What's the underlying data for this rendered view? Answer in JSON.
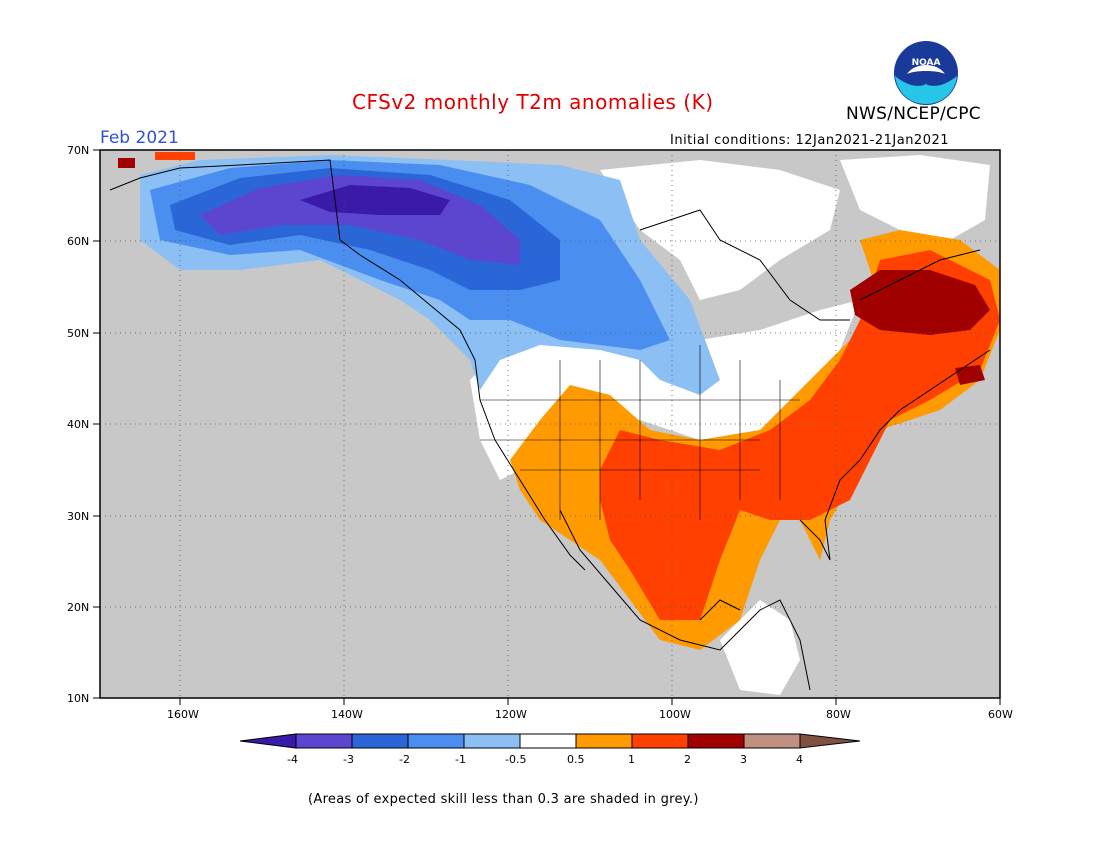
{
  "header": {
    "title": "CFSv2 monthly T2m anomalies (K)",
    "month": "Feb 2021",
    "agency": "NWS/NCEP/CPC",
    "initial_conditions": "Initial conditions: 12Jan2021-21Jan2021",
    "logo_text": "NOAA"
  },
  "map": {
    "projection": "lat-lon",
    "lon_range": [
      -172,
      -60
    ],
    "lat_range": [
      10,
      70
    ],
    "lat_labels": [
      "70N",
      "60N",
      "50N",
      "40N",
      "30N",
      "20N",
      "10N"
    ],
    "lon_labels": [
      "160W",
      "140W",
      "120W",
      "100W",
      "80W",
      "60W"
    ],
    "grid": "dotted",
    "skill_mask_color": "#c8c8c8"
  },
  "colorbar": {
    "tick_labels": [
      "-4",
      "-3",
      "-2",
      "-1",
      "-0.5",
      "0.5",
      "1",
      "2",
      "3",
      "4"
    ],
    "colors": [
      "#3a1aa8",
      "#5c46d0",
      "#2b66d8",
      "#4a8ef0",
      "#8cc0f4",
      "#ffffff",
      "#ff9a00",
      "#ff4000",
      "#a00000",
      "#c09080",
      "#805040"
    ]
  },
  "footnote": "(Areas of expected skill less than 0.3 are shaded in grey.)"
}
